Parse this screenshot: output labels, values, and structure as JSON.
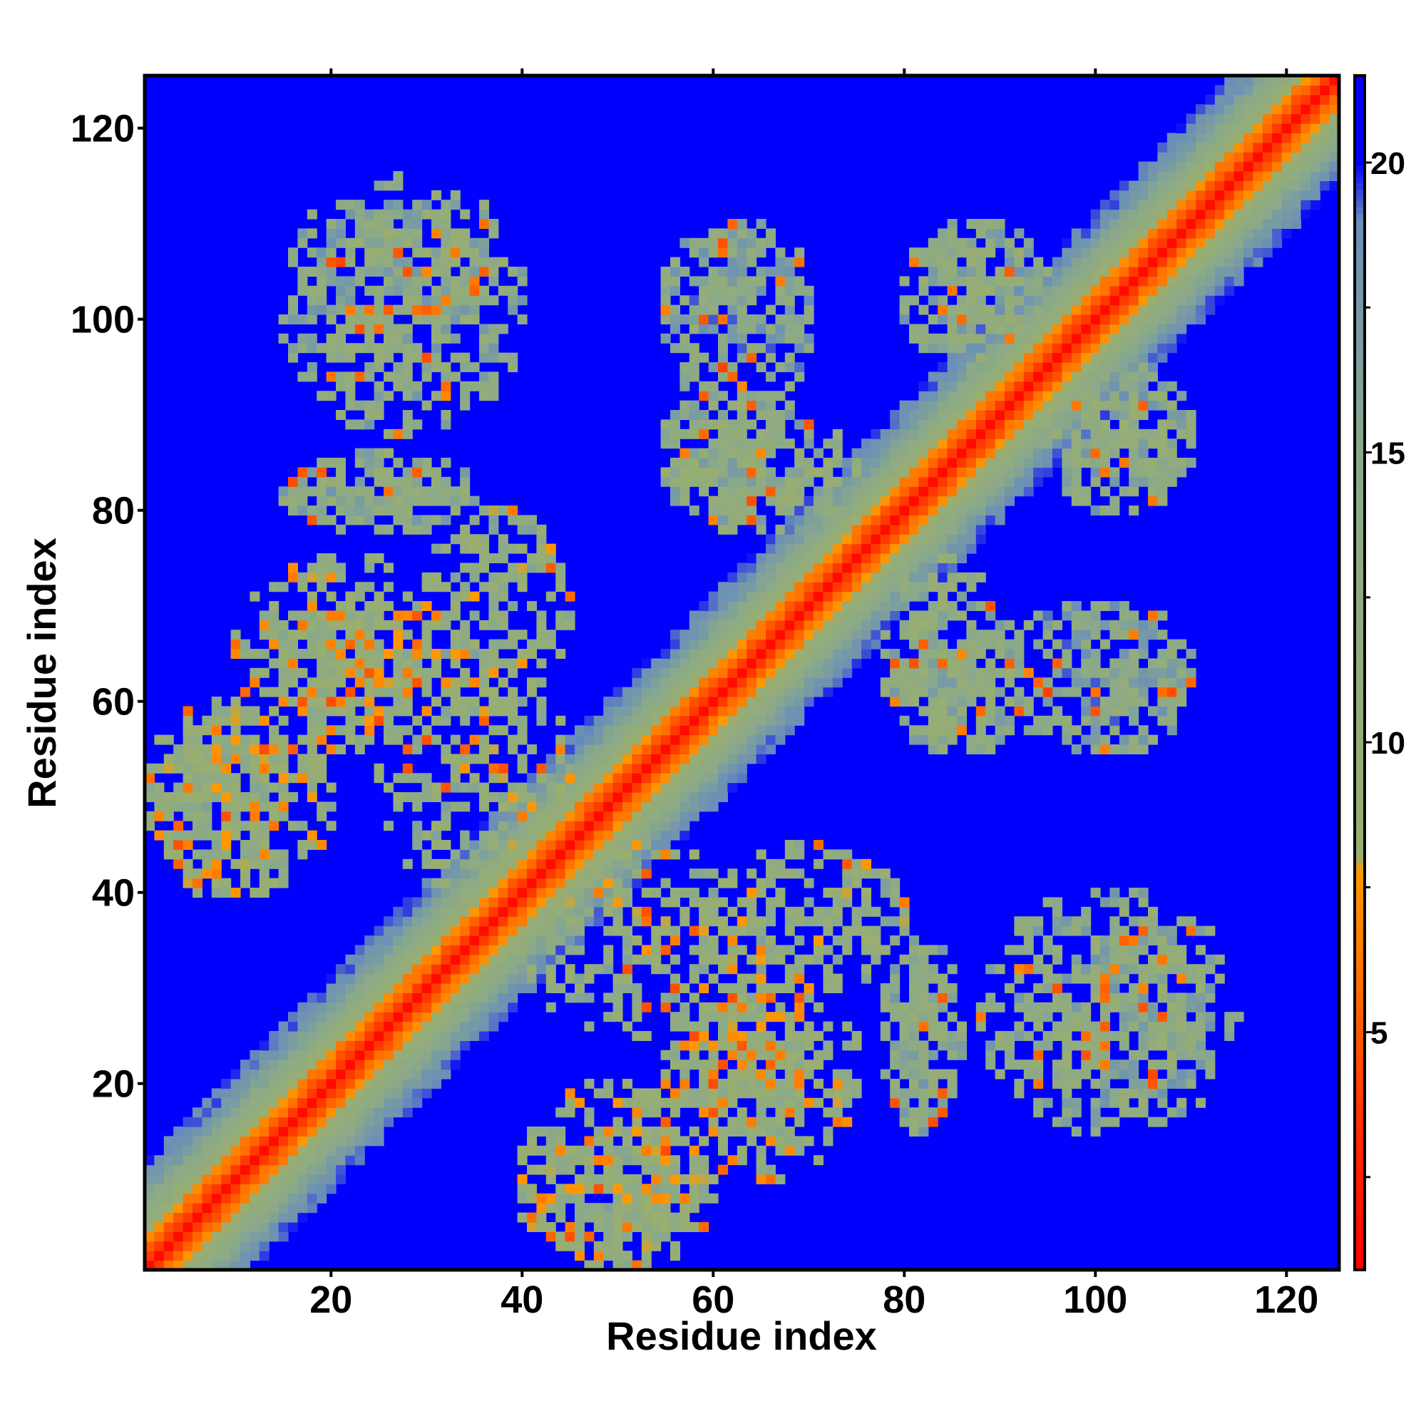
{
  "chart_data": {
    "type": "heatmap",
    "title": "",
    "xlabel": "Residue index",
    "ylabel": "Residue index",
    "n_residues": 125,
    "xlim": [
      1,
      125
    ],
    "ylim": [
      1,
      125
    ],
    "x_ticks": [
      20,
      40,
      60,
      80,
      100,
      120
    ],
    "y_ticks": [
      20,
      40,
      60,
      80,
      100,
      120
    ],
    "colorbar": {
      "range": [
        0.9,
        21.5
      ],
      "ticks": [
        5,
        10,
        15,
        20
      ],
      "stops": [
        {
          "value": 0.9,
          "color": "#ff0000"
        },
        {
          "value": 3.2,
          "color": "#ff2a00"
        },
        {
          "value": 5.4,
          "color": "#ff6400"
        },
        {
          "value": 7.8,
          "color": "#ff9900"
        },
        {
          "value": 8.0,
          "color": "#9aae6e"
        },
        {
          "value": 15.0,
          "color": "#8aa98b"
        },
        {
          "value": 19.0,
          "color": "#6a8fb8"
        },
        {
          "value": 20.0,
          "color": "#0000ff"
        },
        {
          "value": 21.5,
          "color": "#0000ff"
        }
      ]
    },
    "diagonal_profile": [
      {
        "offset": 0,
        "value": 1.5
      },
      {
        "offset": 1,
        "value": 3.8
      },
      {
        "offset": 2,
        "value": 5.5
      },
      {
        "offset": 3,
        "value": 7.0
      },
      {
        "offset": 4,
        "value": 9.0
      },
      {
        "offset": 5,
        "value": 11.0
      },
      {
        "offset": 6,
        "value": 13.0
      },
      {
        "offset": 7,
        "value": 15.0
      },
      {
        "offset": 8,
        "value": 16.5
      },
      {
        "offset": 9,
        "value": 17.8
      },
      {
        "offset": 10,
        "value": 18.8
      },
      {
        "offset": 11,
        "value": 19.5
      }
    ],
    "background_value": 21.5,
    "contact_regions": [
      {
        "x": [
          1,
          20
        ],
        "y": [
          40,
          60
        ],
        "mean": 11
      },
      {
        "x": [
          10,
          35
        ],
        "y": [
          55,
          75
        ],
        "mean": 11
      },
      {
        "x": [
          15,
          35
        ],
        "y": [
          78,
          86
        ],
        "mean": 13
      },
      {
        "x": [
          15,
          40
        ],
        "y": [
          88,
          115
        ],
        "mean": 14
      },
      {
        "x": [
          25,
          45
        ],
        "y": [
          40,
          65
        ],
        "mean": 12
      },
      {
        "x": [
          55,
          75
        ],
        "y": [
          78,
          90
        ],
        "mean": 13
      },
      {
        "x": [
          55,
          70
        ],
        "y": [
          95,
          110
        ],
        "mean": 15
      },
      {
        "x": [
          78,
          95
        ],
        "y": [
          55,
          70
        ],
        "mean": 13
      },
      {
        "x": [
          90,
          110
        ],
        "y": [
          55,
          70
        ],
        "mean": 15
      },
      {
        "x": [
          80,
          95
        ],
        "y": [
          95,
          110
        ],
        "mean": 14
      },
      {
        "x": [
          95,
          110
        ],
        "y": [
          80,
          95
        ],
        "mean": 13
      },
      {
        "x": [
          40,
          60
        ],
        "y": [
          1,
          15
        ],
        "mean": 12
      },
      {
        "x": [
          55,
          70
        ],
        "y": [
          15,
          30
        ],
        "mean": 11
      },
      {
        "x": [
          60,
          80
        ],
        "y": [
          30,
          45
        ],
        "mean": 12
      },
      {
        "x": [
          78,
          85
        ],
        "y": [
          15,
          35
        ],
        "mean": 14
      },
      {
        "x": [
          98,
          112
        ],
        "y": [
          18,
          38
        ],
        "mean": 13
      }
    ]
  }
}
